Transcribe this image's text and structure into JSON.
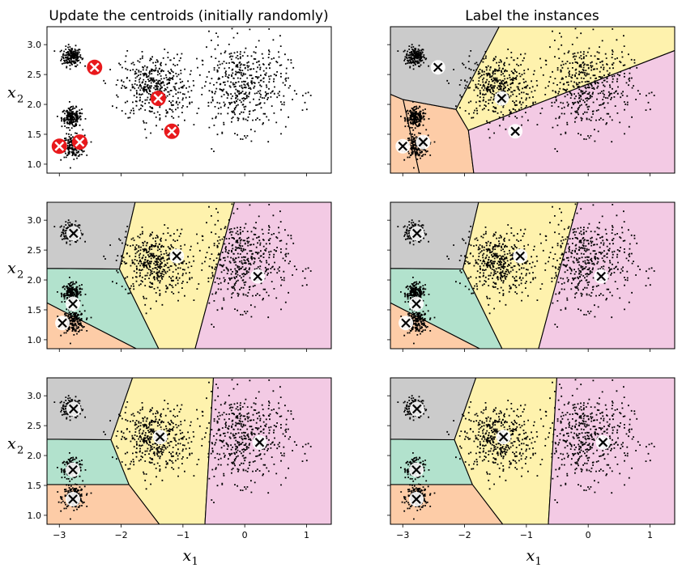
{
  "figure": {
    "titles": [
      "Update the centroids (initially randomly)",
      "Label the instances"
    ]
  },
  "chart_data": {
    "type": "scatter",
    "xlim": [
      -3.2,
      1.4
    ],
    "ylim": [
      0.85,
      3.3
    ],
    "xticks": [
      -3,
      -2,
      -1,
      0,
      1
    ],
    "yticks": [
      1.0,
      1.5,
      2.0,
      2.5,
      3.0
    ],
    "xtick_labels": [
      "−3",
      "−2",
      "−1",
      "0",
      "1"
    ],
    "ytick_labels": [
      "1.0",
      "1.5",
      "2.0",
      "2.5",
      "3.0"
    ],
    "xlabel": {
      "base": "x",
      "sub": "1"
    },
    "ylabel": {
      "base": "x",
      "sub": "2"
    },
    "blobs": [
      {
        "cx": -2.8,
        "cy": 2.8,
        "sd": 0.08,
        "n": 200
      },
      {
        "cx": -2.8,
        "cy": 1.78,
        "sd": 0.08,
        "n": 200
      },
      {
        "cx": -2.77,
        "cy": 1.3,
        "sd": 0.09,
        "n": 200
      },
      {
        "cx": -1.47,
        "cy": 2.29,
        "sd": 0.27,
        "n": 450
      },
      {
        "cx": -0.03,
        "cy": 2.3,
        "sd": 0.37,
        "n": 500
      }
    ],
    "region_colors": [
      "#fdcca7",
      "#b2e2cd",
      "#cbcbcb",
      "#fef2ad",
      "#f3cae4"
    ],
    "region_color_names": [
      "orange",
      "green",
      "gray",
      "yellow",
      "pink"
    ],
    "iterations": [
      [
        [
          -3.0,
          1.3
        ],
        [
          -2.67,
          1.37
        ],
        [
          -2.43,
          2.62
        ],
        [
          -1.4,
          2.1
        ],
        [
          -1.18,
          1.55
        ]
      ],
      [
        [
          -2.95,
          1.28
        ],
        [
          -2.78,
          1.6
        ],
        [
          -2.77,
          2.78
        ],
        [
          -1.1,
          2.4
        ],
        [
          0.21,
          2.06
        ]
      ],
      [
        [
          -2.78,
          1.27
        ],
        [
          -2.78,
          1.76
        ],
        [
          -2.77,
          2.78
        ],
        [
          -1.37,
          2.31
        ],
        [
          0.24,
          2.22
        ]
      ]
    ],
    "panels": [
      {
        "row": 0,
        "col": 0,
        "centroids_from_iteration": 0,
        "regions": false,
        "centroid_style": "red"
      },
      {
        "row": 0,
        "col": 1,
        "centroids_from_iteration": 0,
        "regions": true,
        "centroid_style": "white"
      },
      {
        "row": 1,
        "col": 0,
        "centroids_from_iteration": 1,
        "regions": true,
        "centroid_style": "white"
      },
      {
        "row": 1,
        "col": 1,
        "centroids_from_iteration": 1,
        "regions": true,
        "centroid_style": "white"
      },
      {
        "row": 2,
        "col": 0,
        "centroids_from_iteration": 2,
        "regions": true,
        "centroid_style": "white"
      },
      {
        "row": 2,
        "col": 1,
        "centroids_from_iteration": 2,
        "regions": true,
        "centroid_style": "white"
      }
    ],
    "point_color": "#000000",
    "centroid_red": "#e8191c",
    "boundary_color": "#000000"
  }
}
